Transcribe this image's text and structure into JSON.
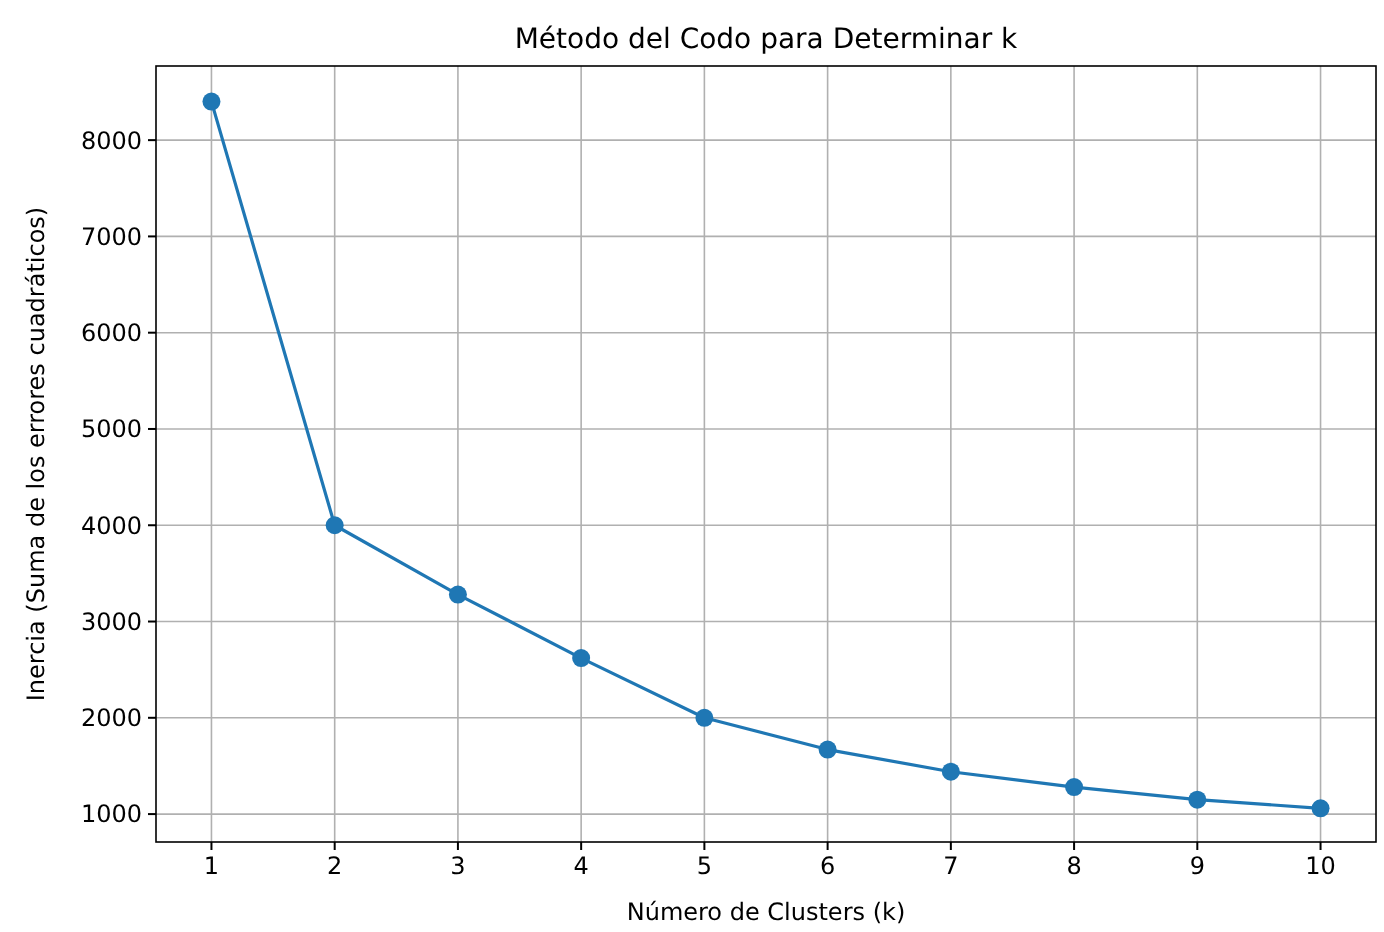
{
  "chart_data": {
    "type": "line",
    "title": "Método del Codo para Determinar k",
    "xlabel": "Número de Clusters (k)",
    "ylabel": "Inercia (Suma de los errores cuadráticos)",
    "x": [
      1,
      2,
      3,
      4,
      5,
      6,
      7,
      8,
      9,
      10
    ],
    "series": [
      {
        "color": "#1f77b4",
        "values": [
          8400,
          4000,
          3280,
          2620,
          2000,
          1670,
          1440,
          1280,
          1150,
          1060
        ]
      }
    ],
    "xlim": [
      0.55,
      10.45
    ],
    "xticks": [
      1,
      2,
      3,
      4,
      5,
      6,
      7,
      8,
      9,
      10
    ],
    "ylim": [
      710,
      8770
    ],
    "yticks": [
      1000,
      2000,
      3000,
      4000,
      5000,
      6000,
      7000,
      8000
    ],
    "grid": true,
    "marker": "circle",
    "line_style": "solid"
  }
}
